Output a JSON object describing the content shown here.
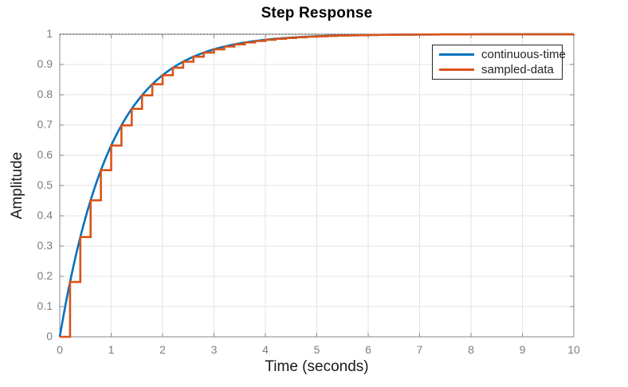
{
  "chart_data": {
    "type": "line",
    "title": "Step Response",
    "xlabel": "Time (seconds)",
    "ylabel": "Amplitude",
    "xlim": [
      0,
      10
    ],
    "ylim": [
      0,
      1
    ],
    "xticks": [
      0,
      1,
      2,
      3,
      4,
      5,
      6,
      7,
      8,
      9,
      10
    ],
    "yticks": [
      0,
      0.1,
      0.2,
      0.3,
      0.4,
      0.5,
      0.6,
      0.7,
      0.8,
      0.9,
      1
    ],
    "grid": true,
    "legend_position": "northeast",
    "steady_state_line": {
      "y": 1,
      "style": "dotted",
      "color": "#4d4d4d"
    },
    "axis_color": "#878787",
    "grid_color": "#e3e3e3",
    "tick_label_color": "#7d7d7d",
    "series": [
      {
        "name": "continuous-time",
        "type": "smooth",
        "color": "#0072BD",
        "model": "y = 1 - exp(-t/tau)",
        "tau": 1,
        "t_range": [
          0,
          10
        ]
      },
      {
        "name": "sampled-data",
        "type": "stairs",
        "color": "#D95319",
        "sample_time": 0.2,
        "values": [
          0,
          0.1813,
          0.3297,
          0.4512,
          0.5507,
          0.6321,
          0.6988,
          0.7534,
          0.7981,
          0.8347,
          0.8647,
          0.8892,
          0.9093,
          0.9257,
          0.9392,
          0.9502,
          0.9592,
          0.9666,
          0.9727,
          0.9776,
          0.9817,
          0.985,
          0.9877,
          0.9899,
          0.9918,
          0.9933,
          0.9945,
          0.9955,
          0.9963,
          0.997,
          0.9975,
          0.998,
          0.9983,
          0.9986,
          0.9989,
          0.9991,
          0.9993,
          0.9994,
          0.9995,
          0.9996,
          0.9997,
          0.9997,
          0.9998,
          0.9998,
          0.9998,
          0.9999,
          0.9999,
          0.9999,
          0.9999,
          0.9999,
          1
        ]
      }
    ]
  }
}
